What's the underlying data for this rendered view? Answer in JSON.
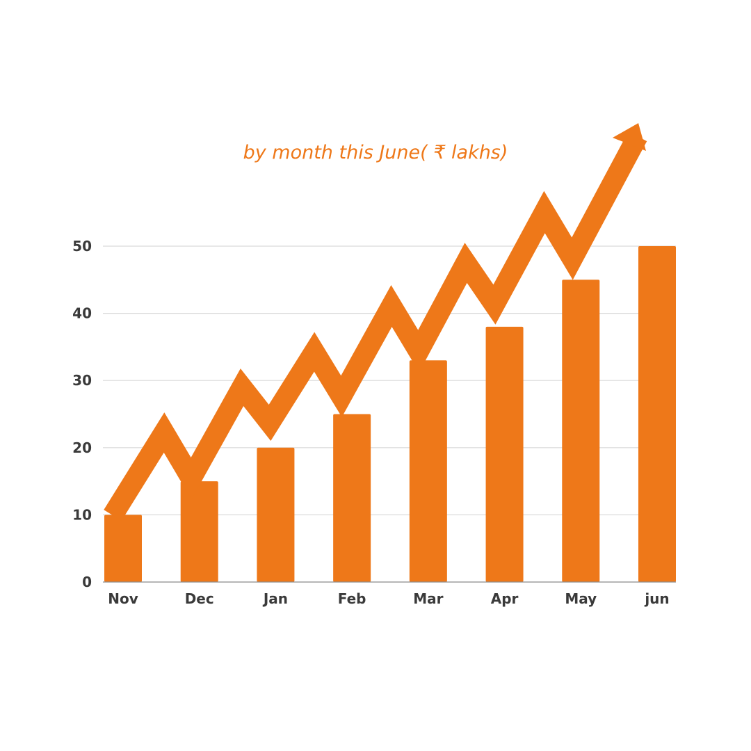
{
  "chart_data": {
    "type": "bar",
    "subtitle": "by month this June( ₹ lakhs)",
    "categories": [
      "Nov",
      "Dec",
      "Jan",
      "Feb",
      "Mar",
      "Apr",
      "May",
      "jun"
    ],
    "values": [
      10,
      15,
      20,
      25,
      33,
      38,
      45,
      50
    ],
    "y_ticks": [
      "0",
      "10",
      "20",
      "30",
      "40",
      "50"
    ],
    "ylim": [
      0,
      50
    ],
    "grid": true,
    "legend": "none",
    "bar_color": "#ee7819",
    "grid_color": "#d9d9d9",
    "decoration": "zigzag trend arrow rising to the upper right"
  }
}
